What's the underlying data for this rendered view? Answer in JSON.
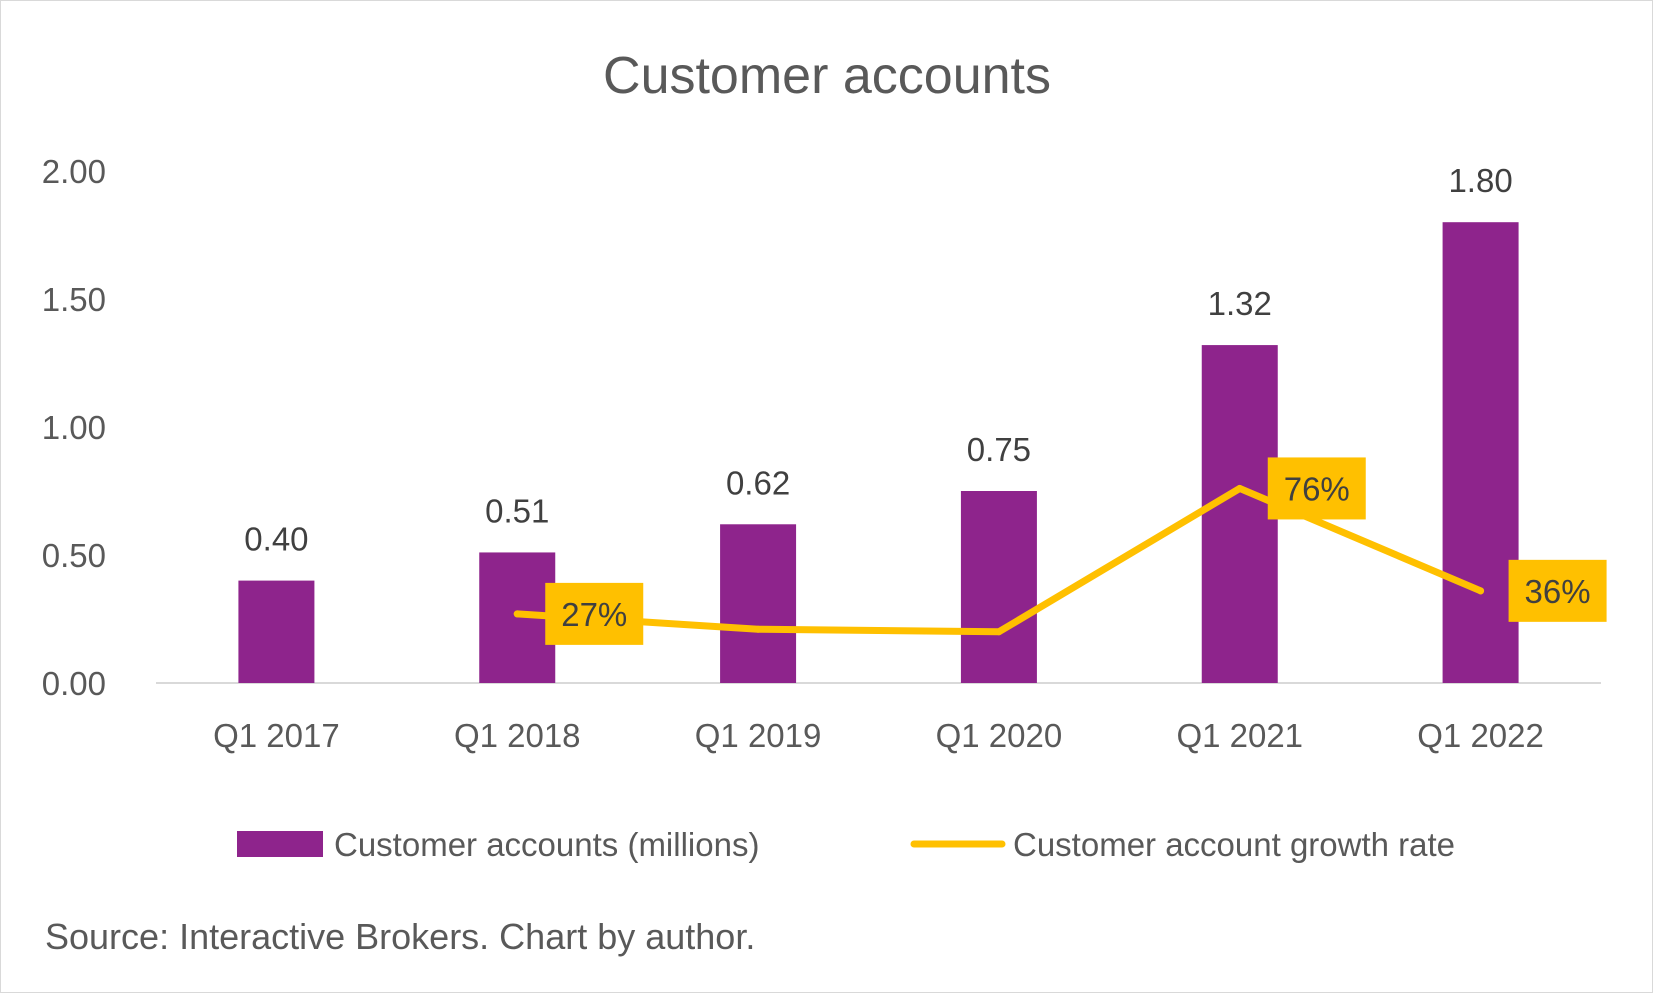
{
  "chart_data": {
    "type": "bar",
    "title": "Customer accounts",
    "categories": [
      "Q1 2017",
      "Q1 2018",
      "Q1 2019",
      "Q1 2020",
      "Q1 2021",
      "Q1 2022"
    ],
    "ylim": [
      0,
      2
    ],
    "yticks": [
      "0.00",
      "0.50",
      "1.00",
      "1.50",
      "2.00"
    ],
    "grid": false,
    "legend_position": "bottom",
    "series": [
      {
        "name": "Customer accounts (millions)",
        "type": "bar",
        "color": "#8E248C",
        "values": [
          0.4,
          0.51,
          0.62,
          0.75,
          1.32,
          1.8
        ],
        "labels": [
          "0.40",
          "0.51",
          "0.62",
          "0.75",
          "1.32",
          "1.80"
        ]
      },
      {
        "name": "Customer account growth rate",
        "type": "line",
        "color": "#FFC000",
        "values": [
          null,
          0.27,
          0.21,
          0.2,
          0.76,
          0.36
        ],
        "labels": [
          null,
          "27%",
          null,
          null,
          "76%",
          "36%"
        ]
      }
    ],
    "note": "Source: Interactive Brokers. Chart by author."
  }
}
